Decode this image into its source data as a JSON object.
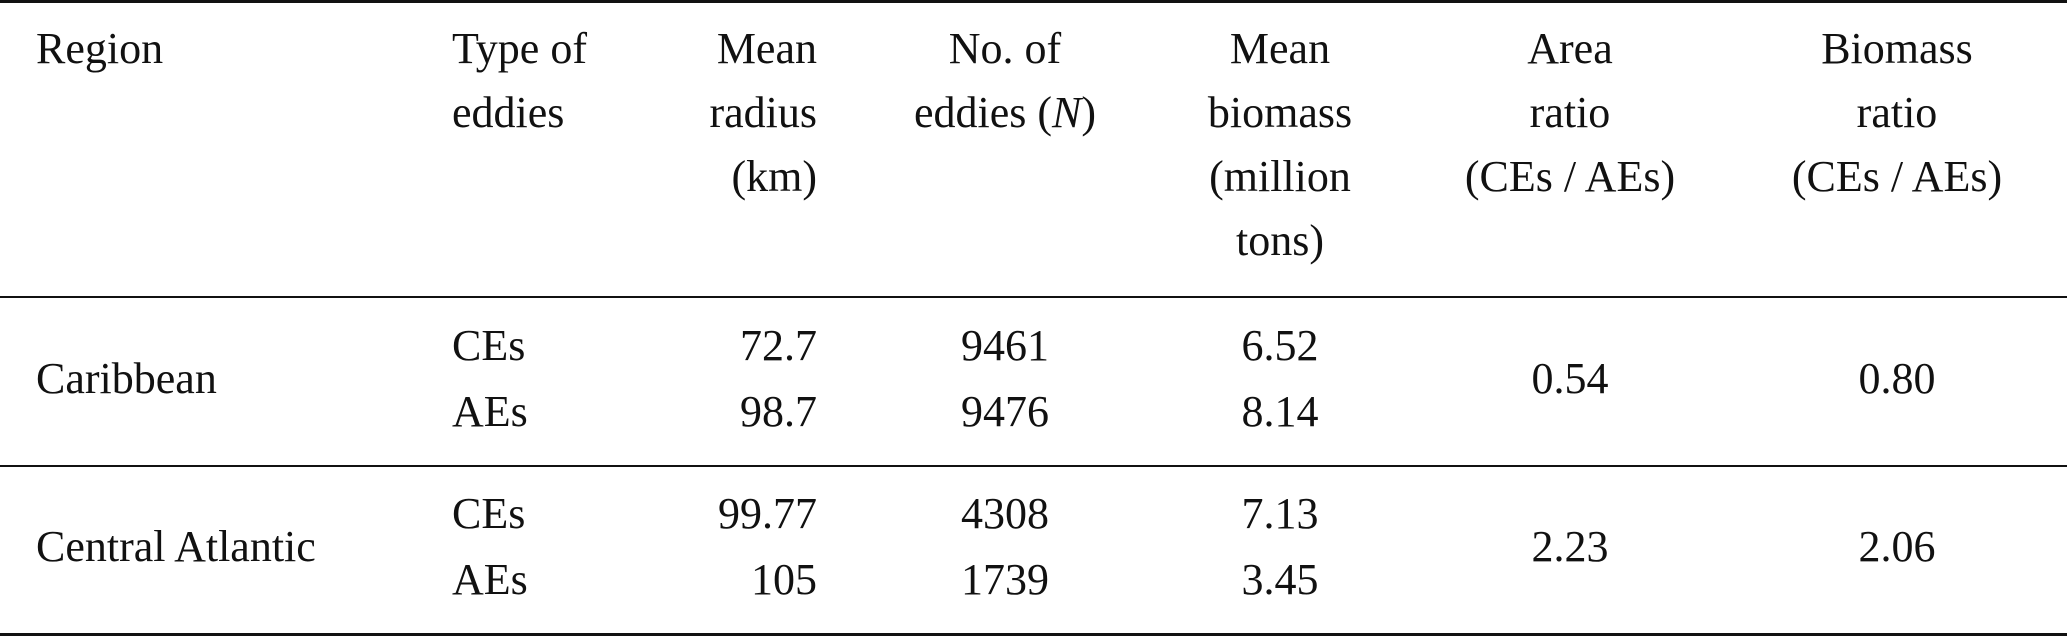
{
  "headers": {
    "region": "Region",
    "type": [
      "Type of",
      "eddies"
    ],
    "radius": [
      "Mean",
      "radius",
      "(km)"
    ],
    "count": [
      "No. of",
      "eddies ("
    ],
    "count_italic": "N",
    "count_close": ")",
    "biomass": [
      "Mean",
      "biomass",
      "(million",
      "tons)"
    ],
    "area_ratio": [
      "Area",
      "ratio",
      "(CEs / AEs)"
    ],
    "biomass_ratio": [
      "Biomass",
      "ratio",
      "(CEs / AEs)"
    ]
  },
  "rows": [
    {
      "region": "Caribbean",
      "types": [
        "CEs",
        "AEs"
      ],
      "radius": [
        "72.7",
        "98.7"
      ],
      "count": [
        "9461",
        "9476"
      ],
      "biomass": [
        "6.52",
        "8.14"
      ],
      "area_ratio": "0.54",
      "biomass_ratio": "0.80"
    },
    {
      "region": "Central Atlantic",
      "types": [
        "CEs",
        "AEs"
      ],
      "radius": [
        "99.77",
        "105"
      ],
      "count": [
        "4308",
        "1739"
      ],
      "biomass": [
        "7.13",
        "3.45"
      ],
      "area_ratio": "2.23",
      "biomass_ratio": "2.06"
    }
  ]
}
